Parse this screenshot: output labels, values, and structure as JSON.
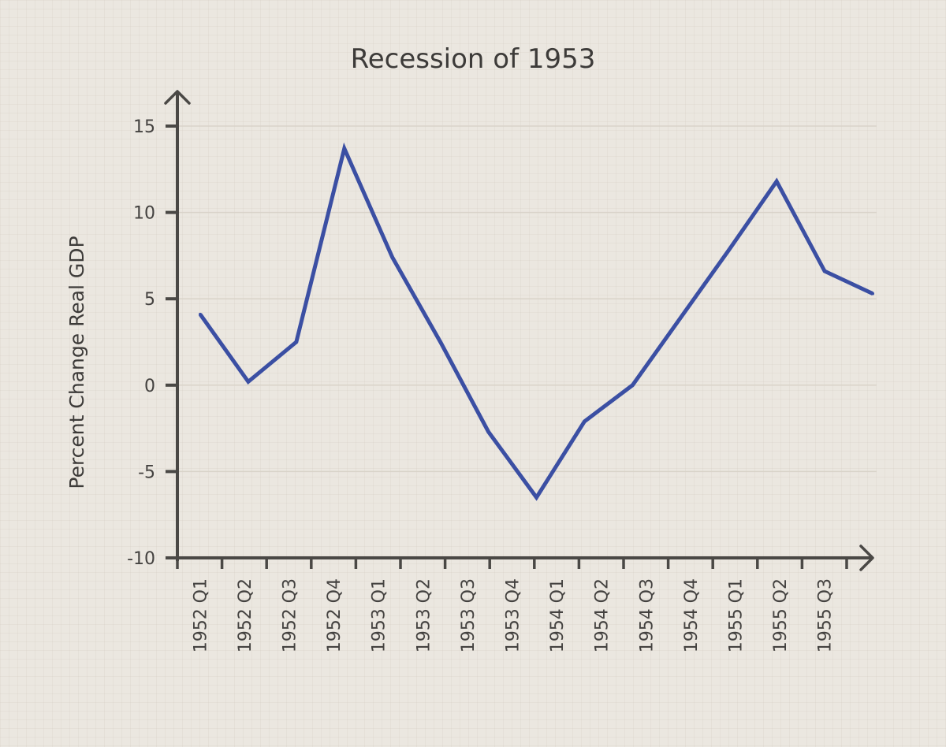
{
  "chart_data": {
    "type": "line",
    "title": "Recession of 1953",
    "xlabel": "",
    "ylabel": "Percent Change Real GDP",
    "ylim": [
      -10,
      15
    ],
    "yticks": [
      -10,
      -5,
      0,
      5,
      10,
      15
    ],
    "ytick_labels": [
      "-10",
      "-5",
      "0",
      "5",
      "10",
      "15"
    ],
    "grid": "horizontal",
    "categories": [
      "1952 Q1",
      "1952 Q2",
      "1952 Q3",
      "1952 Q4",
      "1953 Q1",
      "1953 Q2",
      "1953 Q3",
      "1953 Q4",
      "1954 Q1",
      "1954 Q2",
      "1954 Q3",
      "1954 Q4",
      "1955 Q1",
      "1955 Q2",
      "1955 Q3"
    ],
    "series": [
      {
        "name": "Percent Change Real GDP",
        "color": "#3b4fa3",
        "values": [
          4.1,
          0.2,
          2.5,
          13.7,
          7.4,
          2.5,
          -2.7,
          -6.5,
          -2.1,
          0.0,
          3.9,
          7.8,
          11.8,
          6.6,
          5.3
        ]
      }
    ],
    "axis_color": "#4a4845",
    "grid_color": "#d9d3c9"
  }
}
